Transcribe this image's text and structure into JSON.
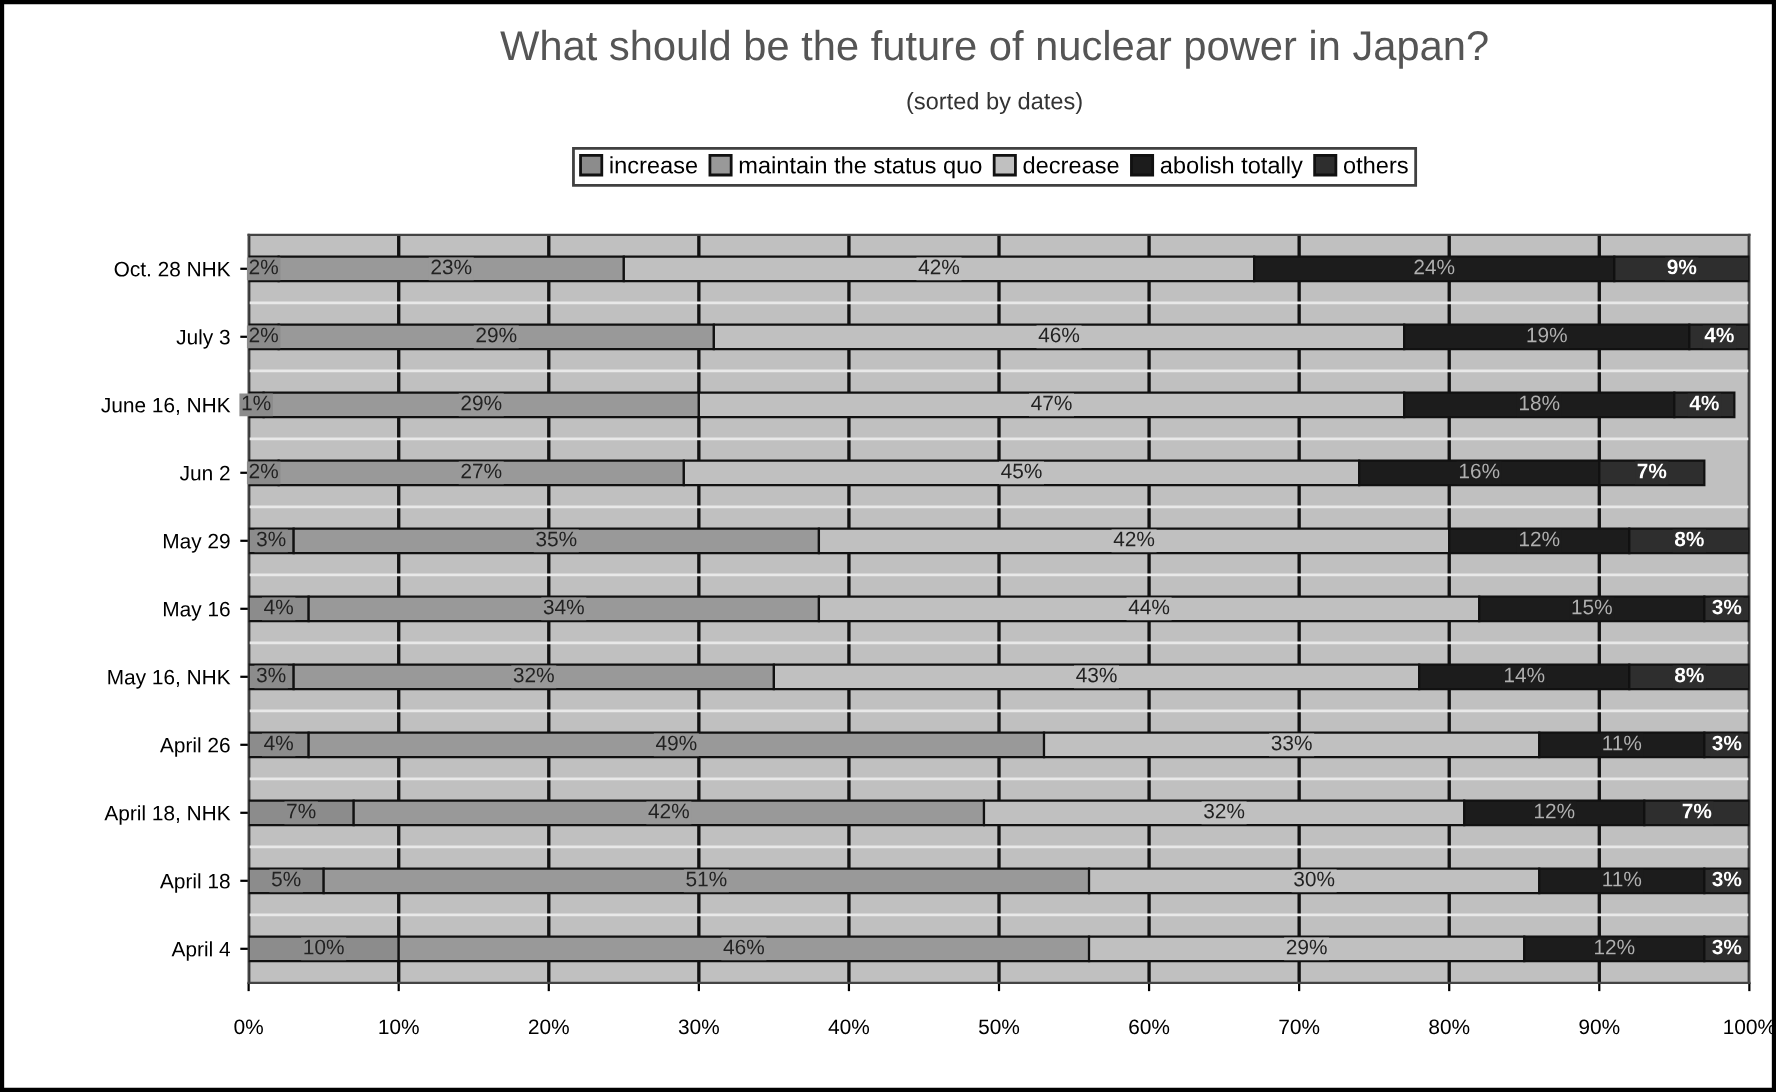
{
  "chart_data": {
    "type": "bar",
    "orientation": "horizontal",
    "stacked": true,
    "title": "What should be the future of nuclear power in Japan?",
    "subtitle": "(sorted by dates)",
    "categories": [
      "Oct. 28 NHK",
      "July 3",
      "June 16, NHK",
      "Jun 2",
      "May 29",
      "May 16",
      "May 16, NHK",
      "April 26",
      "April 18, NHK",
      "April 18",
      "April 4"
    ],
    "series": [
      {
        "name": "increase",
        "color": "#8c8c8c",
        "values": [
          2,
          2,
          1,
          2,
          3,
          4,
          3,
          4,
          7,
          5,
          10
        ],
        "value_labels": [
          "2%",
          "2%",
          "1%",
          "2%",
          "3%",
          "4%",
          "3%",
          "4%",
          "7%",
          "5%",
          "10%"
        ]
      },
      {
        "name": "maintain the status quo",
        "color": "#999999",
        "values": [
          23,
          29,
          29,
          27,
          35,
          34,
          32,
          49,
          42,
          51,
          46
        ],
        "value_labels": [
          "23%",
          "29%",
          "29%",
          "27%",
          "35%",
          "34%",
          "32%",
          "49%",
          "42%",
          "51%",
          "46%"
        ]
      },
      {
        "name": "decrease",
        "color": "#c0c0c0",
        "values": [
          42,
          46,
          47,
          45,
          42,
          44,
          43,
          33,
          32,
          30,
          29
        ],
        "value_labels": [
          "42%",
          "46%",
          "47%",
          "45%",
          "42%",
          "44%",
          "43%",
          "33%",
          "32%",
          "30%",
          "29%"
        ]
      },
      {
        "name": "abolish totally",
        "color": "#1c1c1c",
        "values": [
          24,
          19,
          18,
          16,
          12,
          15,
          14,
          11,
          12,
          11,
          12
        ],
        "value_labels": [
          "24%",
          "19%",
          "18%",
          "16%",
          "12%",
          "15%",
          "14%",
          "11%",
          "12%",
          "11%",
          "12%"
        ]
      },
      {
        "name": "others",
        "color": "#2e2e2e",
        "values": [
          9,
          4,
          4,
          7,
          8,
          3,
          8,
          3,
          7,
          3,
          3
        ],
        "value_labels": [
          "9%",
          "4%",
          "4%",
          "7%",
          "8%",
          "3%",
          "8%",
          "3%",
          "7%",
          "3%",
          "3%"
        ]
      }
    ],
    "xlim": [
      0,
      100
    ],
    "xticks": [
      {
        "value": 0,
        "label": "0%"
      },
      {
        "value": 10,
        "label": "10%"
      },
      {
        "value": 20,
        "label": "20%"
      },
      {
        "value": 30,
        "label": "30%"
      },
      {
        "value": 40,
        "label": "40%"
      },
      {
        "value": 50,
        "label": "50%"
      },
      {
        "value": 60,
        "label": "60%"
      },
      {
        "value": 70,
        "label": "70%"
      },
      {
        "value": 80,
        "label": "80%"
      },
      {
        "value": 90,
        "label": "90%"
      },
      {
        "value": 100,
        "label": "100%"
      }
    ],
    "grid": "x",
    "legend": "top"
  }
}
